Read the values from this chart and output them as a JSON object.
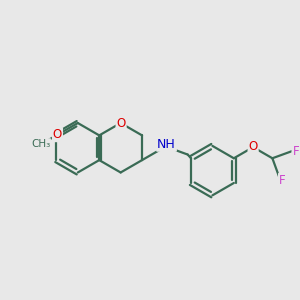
{
  "bg_color": "#e8e8e8",
  "bond_color": "#3a6b55",
  "bond_width": 1.6,
  "atom_colors": {
    "O": "#dd0000",
    "N": "#0000cc",
    "F": "#cc44cc",
    "C": "#3a6b55"
  },
  "font_size": 8.5,
  "fig_size": [
    3.0,
    3.0
  ],
  "dpi": 100,
  "xlim": [
    0.0,
    6.5
  ],
  "ylim": [
    0.5,
    6.0
  ]
}
